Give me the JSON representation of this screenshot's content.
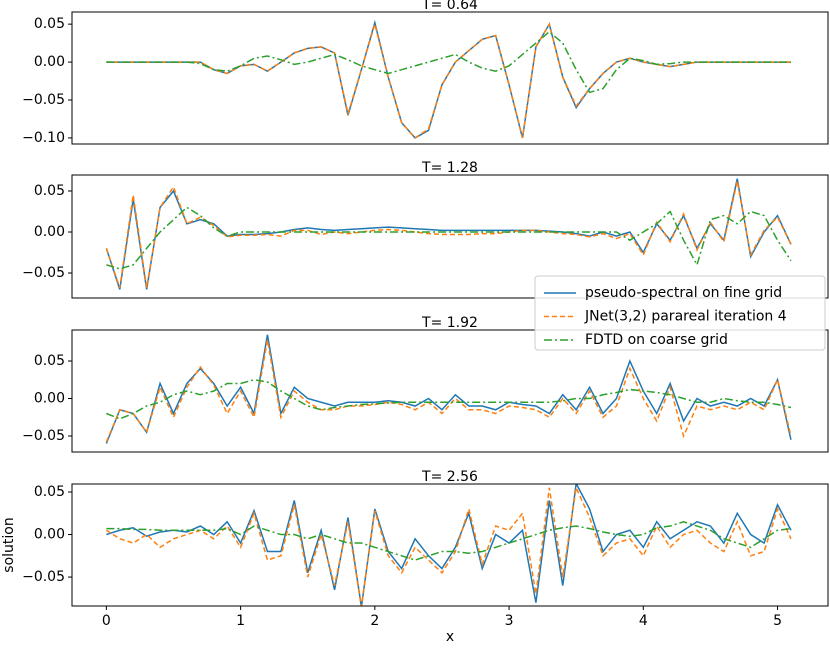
{
  "chart_data": [
    {
      "type": "line",
      "title": "T= 0.64",
      "x": [
        0,
        0.1,
        0.2,
        0.3,
        0.4,
        0.5,
        0.6,
        0.7,
        0.8,
        0.9,
        1.0,
        1.1,
        1.2,
        1.3,
        1.4,
        1.5,
        1.6,
        1.7,
        1.8,
        1.9,
        2.0,
        2.1,
        2.2,
        2.3,
        2.4,
        2.5,
        2.6,
        2.7,
        2.8,
        2.9,
        3.0,
        3.1,
        3.2,
        3.3,
        3.4,
        3.5,
        3.6,
        3.7,
        3.8,
        3.9,
        4.0,
        4.1,
        4.2,
        4.3,
        4.4,
        4.5,
        4.6,
        4.7,
        4.8,
        4.9,
        5.0,
        5.1
      ],
      "xlim": [
        -0.256,
        5.376
      ],
      "ylim": [
        -0.108,
        0.066
      ],
      "yticks": [
        0.05,
        {
          "value": 0,
          "label": "0.00"
        },
        {
          "value": -0.05,
          "label": "−0.05"
        },
        {
          "value": -0.1,
          "label": "−0.10"
        }
      ],
      "series": [
        {
          "name": "pseudo-spectral on fine grid",
          "color": "#1f77b4",
          "style": "solid",
          "values": [
            0,
            0,
            0,
            0,
            0,
            0,
            0,
            0,
            -0.01,
            -0.015,
            -0.005,
            -0.003,
            -0.012,
            0,
            0.012,
            0.018,
            0.02,
            0.012,
            -0.07,
            -0.01,
            0.052,
            -0.02,
            -0.08,
            -0.1,
            -0.09,
            -0.03,
            0,
            0.015,
            0.03,
            0.035,
            -0.03,
            -0.1,
            0.02,
            0.05,
            -0.02,
            -0.06,
            -0.035,
            -0.015,
            0,
            0.005,
            0,
            -0.003,
            -0.006,
            -0.003,
            0,
            0,
            0,
            0,
            0,
            0,
            0,
            0
          ]
        },
        {
          "name": "JNet(3,2) parareal iteration 4",
          "color": "#ff7f0e",
          "style": "dashed",
          "values": [
            0,
            0,
            0,
            0,
            0,
            0,
            0,
            0,
            -0.01,
            -0.015,
            -0.005,
            -0.003,
            -0.012,
            0,
            0.012,
            0.018,
            0.02,
            0.012,
            -0.068,
            -0.01,
            0.05,
            -0.02,
            -0.08,
            -0.1,
            -0.088,
            -0.03,
            0,
            0.015,
            0.03,
            0.035,
            -0.03,
            -0.1,
            0.02,
            0.05,
            -0.02,
            -0.058,
            -0.035,
            -0.015,
            0,
            0.005,
            0,
            -0.003,
            -0.006,
            -0.003,
            0,
            0,
            0,
            0,
            0,
            0,
            0,
            0
          ]
        },
        {
          "name": "FDTD on coarse grid",
          "color": "#2ca02c",
          "style": "dashdot",
          "values": [
            0,
            0,
            0,
            0,
            0,
            0,
            0,
            -0.002,
            -0.01,
            -0.012,
            -0.005,
            0.005,
            0.008,
            0.003,
            -0.003,
            0,
            0.005,
            0.01,
            0.003,
            -0.005,
            -0.01,
            -0.015,
            -0.01,
            -0.005,
            0,
            0.005,
            0.01,
            0,
            -0.008,
            -0.012,
            -0.005,
            0.01,
            0.025,
            0.04,
            0.025,
            -0.01,
            -0.04,
            -0.035,
            -0.01,
            0.005,
            0.002,
            -0.003,
            -0.002,
            0,
            0,
            0,
            0,
            0,
            0,
            0,
            0,
            0
          ]
        }
      ]
    },
    {
      "type": "line",
      "title": "T= 1.28",
      "x": [
        0,
        0.1,
        0.2,
        0.3,
        0.4,
        0.5,
        0.6,
        0.7,
        0.8,
        0.9,
        1.0,
        1.1,
        1.2,
        1.3,
        1.4,
        1.5,
        1.6,
        1.7,
        1.8,
        1.9,
        2.0,
        2.1,
        2.2,
        2.3,
        2.4,
        2.5,
        2.6,
        2.7,
        2.8,
        2.9,
        3.0,
        3.1,
        3.2,
        3.3,
        3.4,
        3.5,
        3.6,
        3.7,
        3.8,
        3.9,
        4.0,
        4.1,
        4.2,
        4.3,
        4.4,
        4.5,
        4.6,
        4.7,
        4.8,
        4.9,
        5.0,
        5.1
      ],
      "xlim": [
        -0.256,
        5.376
      ],
      "ylim": [
        -0.0805,
        0.0695
      ],
      "yticks": [
        0.05,
        {
          "value": 0,
          "label": "0.00"
        },
        {
          "value": -0.05,
          "label": "−0.05"
        }
      ],
      "legend": "lower right",
      "series": [
        {
          "name": "pseudo-spectral on fine grid",
          "color": "#1f77b4",
          "style": "solid",
          "values": [
            -0.02,
            -0.07,
            0.04,
            -0.07,
            0.03,
            0.05,
            0.01,
            0.015,
            0.01,
            -0.005,
            -0.003,
            -0.003,
            -0.002,
            0,
            0.003,
            0.005,
            0.003,
            0.002,
            0.003,
            0.004,
            0.005,
            0.006,
            0.005,
            0.004,
            0.003,
            0.002,
            0.002,
            0.002,
            0.002,
            0.002,
            0.002,
            0.002,
            0.002,
            0.001,
            0,
            -0.002,
            -0.005,
            0,
            -0.005,
            0,
            -0.025,
            0.01,
            -0.01,
            0.02,
            -0.02,
            0.01,
            -0.01,
            0.065,
            -0.03,
            0,
            0.02,
            -0.015
          ]
        },
        {
          "name": "JNet(3,2) parareal iteration 4",
          "color": "#ff7f0e",
          "style": "dashed",
          "values": [
            -0.02,
            -0.068,
            0.045,
            -0.068,
            0.03,
            0.055,
            0.01,
            0.018,
            0.008,
            -0.006,
            -0.004,
            -0.004,
            -0.003,
            -0.005,
            0.002,
            0.002,
            -0.003,
            0,
            -0.002,
            0,
            0.002,
            0.003,
            0.002,
            0,
            -0.002,
            -0.003,
            -0.003,
            -0.003,
            -0.002,
            -0.002,
            0,
            0.002,
            0.002,
            0,
            -0.002,
            -0.003,
            -0.006,
            -0.002,
            -0.008,
            -0.002,
            -0.028,
            0.012,
            -0.012,
            0.022,
            -0.022,
            0.012,
            -0.012,
            0.062,
            -0.028,
            0.002,
            0.018,
            -0.015
          ]
        },
        {
          "name": "FDTD on coarse grid",
          "color": "#2ca02c",
          "style": "dashdot",
          "values": [
            -0.04,
            -0.045,
            -0.04,
            -0.02,
            0,
            0.015,
            0.03,
            0.02,
            0.005,
            -0.005,
            0,
            0,
            0,
            0,
            0,
            0,
            0,
            0,
            0,
            0,
            0,
            0,
            0,
            0,
            0,
            0,
            0,
            0,
            0,
            0,
            0,
            0,
            0,
            0,
            0,
            0,
            0,
            0,
            0,
            -0.01,
            0,
            0.01,
            0.025,
            -0.01,
            -0.04,
            0.015,
            0.02,
            0.01,
            0.025,
            0.02,
            -0.01,
            -0.035
          ]
        }
      ]
    },
    {
      "type": "line",
      "title": "T= 1.92",
      "x": [
        0,
        0.1,
        0.2,
        0.3,
        0.4,
        0.5,
        0.6,
        0.7,
        0.8,
        0.9,
        1.0,
        1.1,
        1.2,
        1.3,
        1.4,
        1.5,
        1.6,
        1.7,
        1.8,
        1.9,
        2.0,
        2.1,
        2.2,
        2.3,
        2.4,
        2.5,
        2.6,
        2.7,
        2.8,
        2.9,
        3.0,
        3.1,
        3.2,
        3.3,
        3.4,
        3.5,
        3.6,
        3.7,
        3.8,
        3.9,
        4.0,
        4.1,
        4.2,
        4.3,
        4.4,
        4.5,
        4.6,
        4.7,
        4.8,
        4.9,
        5.0,
        5.1
      ],
      "xlim": [
        -0.256,
        5.376
      ],
      "ylim": [
        -0.0713,
        0.0913
      ],
      "yticks": [
        0.05,
        {
          "value": 0,
          "label": "0.00"
        },
        {
          "value": -0.05,
          "label": "−0.05"
        }
      ],
      "series": [
        {
          "name": "pseudo-spectral on fine grid",
          "color": "#1f77b4",
          "style": "solid",
          "values": [
            -0.06,
            -0.015,
            -0.02,
            -0.045,
            0.02,
            -0.02,
            0.02,
            0.04,
            0.02,
            -0.01,
            0.015,
            -0.02,
            0.085,
            -0.02,
            0.015,
            0,
            -0.005,
            -0.01,
            -0.005,
            -0.005,
            -0.005,
            -0.003,
            -0.005,
            -0.01,
            0,
            -0.015,
            0.005,
            -0.01,
            -0.01,
            -0.015,
            -0.005,
            -0.008,
            -0.01,
            -0.02,
            0.005,
            -0.015,
            0.015,
            -0.02,
            0,
            0.05,
            0.01,
            -0.02,
            0.02,
            -0.03,
            0,
            -0.01,
            -0.005,
            -0.01,
            0,
            -0.01,
            0.025,
            -0.055
          ]
        },
        {
          "name": "JNet(3,2) parareal iteration 4",
          "color": "#ff7f0e",
          "style": "dashed",
          "values": [
            -0.058,
            -0.015,
            -0.02,
            -0.045,
            0.015,
            -0.025,
            0.015,
            0.042,
            0.018,
            -0.02,
            0.01,
            -0.025,
            0.078,
            -0.025,
            0.01,
            -0.005,
            -0.015,
            -0.015,
            -0.01,
            -0.01,
            -0.008,
            -0.005,
            -0.008,
            -0.015,
            -0.005,
            -0.02,
            0,
            -0.015,
            -0.015,
            -0.02,
            -0.01,
            -0.012,
            -0.015,
            -0.025,
            0,
            -0.02,
            0.01,
            -0.025,
            -0.01,
            0.04,
            0,
            -0.03,
            0.015,
            -0.05,
            -0.01,
            -0.015,
            -0.01,
            -0.015,
            -0.005,
            -0.015,
            0.025,
            -0.05
          ]
        },
        {
          "name": "FDTD on coarse grid",
          "color": "#2ca02c",
          "style": "dashdot",
          "values": [
            -0.02,
            -0.027,
            -0.02,
            -0.01,
            -0.005,
            0.005,
            0.01,
            0.005,
            0.01,
            0.02,
            0.02,
            0.025,
            0.022,
            0.01,
            0,
            -0.01,
            -0.015,
            -0.012,
            -0.01,
            -0.008,
            -0.007,
            -0.006,
            -0.005,
            -0.005,
            -0.005,
            -0.005,
            -0.005,
            -0.005,
            -0.005,
            -0.005,
            -0.005,
            -0.005,
            -0.005,
            -0.005,
            -0.003,
            0,
            0,
            0.005,
            0.008,
            0.012,
            0.01,
            0.008,
            0.005,
            0,
            -0.005,
            -0.005,
            0,
            -0.003,
            -0.005,
            -0.005,
            -0.008,
            -0.012
          ]
        }
      ]
    },
    {
      "type": "line",
      "title": "T= 2.56",
      "xlabel": "x",
      "ylabel": "solution",
      "x": [
        0,
        0.1,
        0.2,
        0.3,
        0.4,
        0.5,
        0.6,
        0.7,
        0.8,
        0.9,
        1.0,
        1.1,
        1.2,
        1.3,
        1.4,
        1.5,
        1.6,
        1.7,
        1.8,
        1.9,
        2.0,
        2.1,
        2.2,
        2.3,
        2.4,
        2.5,
        2.6,
        2.7,
        2.8,
        2.9,
        3.0,
        3.1,
        3.2,
        3.3,
        3.4,
        3.5,
        3.6,
        3.7,
        3.8,
        3.9,
        4.0,
        4.1,
        4.2,
        4.3,
        4.4,
        4.5,
        4.6,
        4.7,
        4.8,
        4.9,
        5.0,
        5.1
      ],
      "xlim": [
        -0.256,
        5.376
      ],
      "xticks": [
        0,
        1,
        2,
        3,
        4,
        5
      ],
      "ylim": [
        -0.084,
        0.0594
      ],
      "yticks": [
        0.05,
        {
          "value": 0,
          "label": "0.00"
        },
        {
          "value": -0.05,
          "label": "−0.05"
        }
      ],
      "series": [
        {
          "name": "pseudo-spectral on fine grid",
          "color": "#1f77b4",
          "style": "solid",
          "values": [
            0,
            0.005,
            0.008,
            -0.002,
            0.003,
            0.005,
            0.003,
            0.01,
            0,
            0.015,
            -0.01,
            0.028,
            -0.02,
            -0.02,
            0.04,
            -0.045,
            0.005,
            -0.065,
            0.02,
            -0.085,
            0.03,
            -0.02,
            -0.04,
            -0.005,
            -0.025,
            -0.04,
            -0.015,
            0.025,
            -0.04,
            0,
            -0.01,
            0.005,
            -0.08,
            0.04,
            -0.06,
            0.06,
            0.03,
            -0.02,
            0,
            0.005,
            -0.015,
            0.015,
            -0.005,
            0.005,
            0.015,
            0.01,
            -0.01,
            0.025,
            0,
            -0.01,
            0.035,
            0.005
          ]
        },
        {
          "name": "JNet(3,2) parareal iteration 4",
          "color": "#ff7f0e",
          "style": "dashed",
          "values": [
            0.005,
            -0.005,
            -0.01,
            0,
            -0.015,
            -0.005,
            0,
            0.005,
            -0.005,
            0.01,
            -0.015,
            0.025,
            -0.03,
            -0.025,
            0.035,
            -0.05,
            0,
            -0.06,
            0.015,
            -0.085,
            0.028,
            -0.025,
            -0.045,
            -0.015,
            -0.03,
            -0.045,
            -0.02,
            0.03,
            -0.035,
            0.01,
            0.005,
            0.025,
            -0.07,
            0.055,
            -0.05,
            0.055,
            0.02,
            -0.025,
            -0.01,
            -0.005,
            -0.025,
            0.01,
            -0.015,
            0,
            0.005,
            -0.01,
            -0.02,
            0.015,
            -0.025,
            -0.02,
            0.03,
            -0.005
          ]
        },
        {
          "name": "FDTD on coarse grid",
          "color": "#2ca02c",
          "style": "dashdot",
          "values": [
            0.007,
            0.007,
            0.006,
            0.006,
            0.005,
            0.005,
            0.005,
            0.005,
            0.005,
            0.007,
            0,
            0.01,
            0.005,
            0,
            0,
            -0.005,
            0,
            -0.005,
            -0.01,
            -0.01,
            -0.015,
            -0.02,
            -0.025,
            -0.03,
            -0.025,
            -0.02,
            -0.02,
            -0.022,
            -0.02,
            -0.015,
            -0.01,
            -0.005,
            0,
            0.005,
            0.008,
            0.01,
            0.007,
            0.003,
            0,
            -0.002,
            0,
            0.008,
            0.01,
            0.015,
            0.01,
            0.005,
            -0.005,
            -0.01,
            -0.015,
            -0.005,
            0.005,
            0.007
          ]
        }
      ]
    }
  ]
}
